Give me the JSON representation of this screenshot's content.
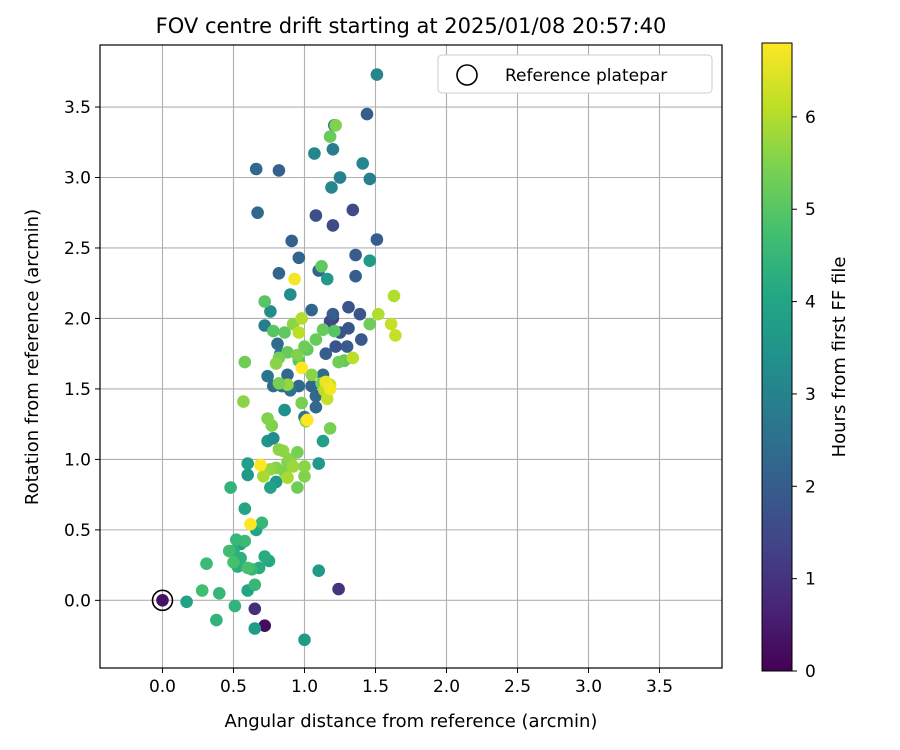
{
  "chart_data": {
    "type": "scatter",
    "title": "FOV centre drift starting at 2025/01/08 20:57:40",
    "xlabel": "Angular distance from reference (arcmin)",
    "ylabel": "Rotation from reference (arcmin)",
    "xlim": [
      -0.44,
      3.94
    ],
    "ylim": [
      -0.48,
      3.94
    ],
    "x_ticks": [
      "0.0",
      "0.5",
      "1.0",
      "1.5",
      "2.0",
      "2.5",
      "3.0",
      "3.5"
    ],
    "y_ticks": [
      "0.0",
      "0.5",
      "1.0",
      "1.5",
      "2.0",
      "2.5",
      "3.0",
      "3.5"
    ],
    "grid": true,
    "legend": {
      "position": "top-right",
      "entries": [
        "Reference platepar"
      ]
    },
    "reference_point": {
      "x": 0.0,
      "y": 0.0
    },
    "colorbar": {
      "label": "Hours from first FF file",
      "colormap": "viridis",
      "range": [
        0,
        6.8
      ],
      "ticks": [
        "0",
        "1",
        "2",
        "3",
        "4",
        "5",
        "6"
      ]
    },
    "points": [
      [
        0.0,
        0.0,
        0.3
      ],
      [
        0.72,
        -0.18,
        0.2
      ],
      [
        0.65,
        -0.06,
        0.9
      ],
      [
        1.24,
        0.08,
        1.0
      ],
      [
        1.08,
        2.73,
        1.6
      ],
      [
        1.2,
        2.66,
        1.5
      ],
      [
        1.34,
        2.77,
        1.5
      ],
      [
        1.44,
        3.45,
        2.0
      ],
      [
        1.51,
        2.56,
        2.0
      ],
      [
        1.36,
        2.45,
        2.0
      ],
      [
        1.36,
        2.3,
        2.0
      ],
      [
        1.2,
        2.0,
        1.3
      ],
      [
        1.18,
        1.98,
        1.4
      ],
      [
        1.31,
        2.08,
        1.7
      ],
      [
        1.39,
        2.03,
        1.8
      ],
      [
        1.31,
        1.93,
        1.8
      ],
      [
        1.25,
        1.9,
        1.8
      ],
      [
        1.4,
        1.85,
        1.9
      ],
      [
        1.22,
        1.8,
        1.8
      ],
      [
        1.15,
        1.75,
        2.0
      ],
      [
        1.28,
        1.7,
        1.9
      ],
      [
        1.3,
        1.8,
        2.0
      ],
      [
        0.66,
        3.06,
        2.3
      ],
      [
        0.82,
        3.05,
        2.1
      ],
      [
        0.67,
        2.75,
        2.3
      ],
      [
        0.91,
        2.55,
        2.1
      ],
      [
        0.96,
        2.43,
        2.2
      ],
      [
        0.82,
        2.32,
        2.2
      ],
      [
        1.1,
        2.34,
        2.2
      ],
      [
        1.2,
        2.03,
        2.0
      ],
      [
        1.05,
        2.06,
        2.2
      ],
      [
        0.81,
        1.82,
        2.4
      ],
      [
        0.83,
        1.75,
        2.6
      ],
      [
        0.74,
        1.59,
        2.6
      ],
      [
        0.78,
        1.52,
        2.4
      ],
      [
        0.88,
        1.6,
        2.3
      ],
      [
        0.84,
        1.52,
        2.5
      ],
      [
        0.96,
        1.52,
        2.3
      ],
      [
        0.9,
        1.49,
        2.6
      ],
      [
        1.05,
        1.52,
        2.2
      ],
      [
        1.08,
        1.45,
        2.3
      ],
      [
        1.08,
        1.37,
        2.3
      ],
      [
        1.13,
        1.6,
        2.4
      ],
      [
        1.0,
        1.3,
        2.6
      ],
      [
        1.07,
        3.17,
        3.1
      ],
      [
        1.21,
        3.37,
        2.7
      ],
      [
        1.2,
        3.2,
        2.8
      ],
      [
        1.25,
        3.0,
        2.9
      ],
      [
        1.19,
        2.93,
        3.1
      ],
      [
        1.41,
        3.1,
        3.1
      ],
      [
        1.46,
        2.99,
        2.9
      ],
      [
        1.51,
        3.73,
        3.1
      ],
      [
        1.46,
        2.41,
        3.7
      ],
      [
        1.16,
        2.28,
        3.6
      ],
      [
        0.72,
        1.95,
        2.8
      ],
      [
        0.76,
        2.05,
        3.3
      ],
      [
        0.9,
        2.17,
        3.3
      ],
      [
        0.74,
        1.13,
        3.5
      ],
      [
        0.78,
        1.15,
        3.3
      ],
      [
        0.86,
        1.35,
        3.4
      ],
      [
        1.1,
        0.97,
        3.6
      ],
      [
        1.13,
        1.13,
        3.8
      ],
      [
        1.1,
        0.21,
        3.7
      ],
      [
        0.8,
        0.84,
        3.7
      ],
      [
        0.76,
        0.8,
        3.9
      ],
      [
        0.55,
        0.4,
        3.9
      ],
      [
        0.6,
        0.97,
        3.8
      ],
      [
        0.6,
        0.89,
        3.6
      ],
      [
        0.17,
        -0.01,
        3.9
      ],
      [
        0.65,
        -0.2,
        3.7
      ],
      [
        1.0,
        -0.28,
        3.7
      ],
      [
        0.6,
        0.07,
        4.0
      ],
      [
        0.58,
        0.65,
        4.0
      ],
      [
        0.66,
        0.5,
        4.0
      ],
      [
        0.75,
        0.28,
        4.1
      ],
      [
        0.72,
        0.31,
        4.2
      ],
      [
        0.68,
        0.23,
        4.2
      ],
      [
        0.53,
        0.24,
        4.2
      ],
      [
        0.55,
        0.3,
        4.3
      ],
      [
        0.5,
        0.35,
        4.3
      ],
      [
        0.48,
        0.8,
        4.4
      ],
      [
        0.38,
        -0.14,
        4.4
      ],
      [
        0.4,
        0.05,
        4.5
      ],
      [
        0.51,
        -0.04,
        4.4
      ],
      [
        0.65,
        0.11,
        4.5
      ],
      [
        0.63,
        0.22,
        4.5
      ],
      [
        0.7,
        0.55,
        4.5
      ],
      [
        0.31,
        0.26,
        4.6
      ],
      [
        0.28,
        0.07,
        4.7
      ],
      [
        0.47,
        0.35,
        4.7
      ],
      [
        0.6,
        0.23,
        4.8
      ],
      [
        0.58,
        0.42,
        4.6
      ],
      [
        0.52,
        0.43,
        4.5
      ],
      [
        0.5,
        0.27,
        4.8
      ],
      [
        0.72,
        2.12,
        5.0
      ],
      [
        0.78,
        1.91,
        5.0
      ],
      [
        0.86,
        1.9,
        5.1
      ],
      [
        0.88,
        1.76,
        5.2
      ],
      [
        0.96,
        1.7,
        5.0
      ],
      [
        1.02,
        1.78,
        5.1
      ],
      [
        1.08,
        1.85,
        5.2
      ],
      [
        1.13,
        1.92,
        5.2
      ],
      [
        1.21,
        1.91,
        5.0
      ],
      [
        1.28,
        1.7,
        5.2
      ],
      [
        1.24,
        1.69,
        5.3
      ],
      [
        1.12,
        2.37,
        5.1
      ],
      [
        1.18,
        3.29,
        5.2
      ],
      [
        1.22,
        3.37,
        5.5
      ],
      [
        1.46,
        1.96,
        5.3
      ],
      [
        0.58,
        1.69,
        5.3
      ],
      [
        0.57,
        1.41,
        5.6
      ],
      [
        0.74,
        1.29,
        5.5
      ],
      [
        0.77,
        1.24,
        5.5
      ],
      [
        0.88,
        1.53,
        5.7
      ],
      [
        0.98,
        1.4,
        5.4
      ],
      [
        1.01,
        1.27,
        5.7
      ],
      [
        1.18,
        1.22,
        5.4
      ],
      [
        0.82,
        1.72,
        5.4
      ],
      [
        0.8,
        1.68,
        5.6
      ],
      [
        0.92,
        1.96,
        5.6
      ],
      [
        0.95,
        1.74,
        5.5
      ],
      [
        1.0,
        1.8,
        5.3
      ],
      [
        1.05,
        1.6,
        5.6
      ],
      [
        1.12,
        1.54,
        5.4
      ],
      [
        0.82,
        1.54,
        5.4
      ],
      [
        0.85,
        1.06,
        5.7
      ],
      [
        0.88,
        0.98,
        5.5
      ],
      [
        0.9,
        1.0,
        5.6
      ],
      [
        0.95,
        1.05,
        5.4
      ],
      [
        0.82,
        1.07,
        5.6
      ],
      [
        0.8,
        0.94,
        5.5
      ],
      [
        0.86,
        0.91,
        5.5
      ],
      [
        0.95,
        0.8,
        5.3
      ],
      [
        1.0,
        0.88,
        5.5
      ],
      [
        0.92,
        0.95,
        5.8
      ],
      [
        0.88,
        0.87,
        5.9
      ],
      [
        0.76,
        0.93,
        5.7
      ],
      [
        0.71,
        0.88,
        5.9
      ],
      [
        1.0,
        0.95,
        5.6
      ],
      [
        1.34,
        1.72,
        6.1
      ],
      [
        1.52,
        2.03,
        6.0
      ],
      [
        1.61,
        1.96,
        6.2
      ],
      [
        1.63,
        2.16,
        6.0
      ],
      [
        1.64,
        1.88,
        6.2
      ],
      [
        1.18,
        1.53,
        6.3
      ],
      [
        1.14,
        1.49,
        6.1
      ],
      [
        1.16,
        1.43,
        6.2
      ],
      [
        0.98,
        2.0,
        6.0
      ],
      [
        0.96,
        1.9,
        6.1
      ],
      [
        0.62,
        0.54,
        6.8
      ],
      [
        0.69,
        0.96,
        6.8
      ],
      [
        0.93,
        2.28,
        6.7
      ],
      [
        0.98,
        1.65,
        6.8
      ],
      [
        1.02,
        1.28,
        6.8
      ],
      [
        1.15,
        1.55,
        6.6
      ],
      [
        1.18,
        1.5,
        6.7
      ]
    ]
  }
}
